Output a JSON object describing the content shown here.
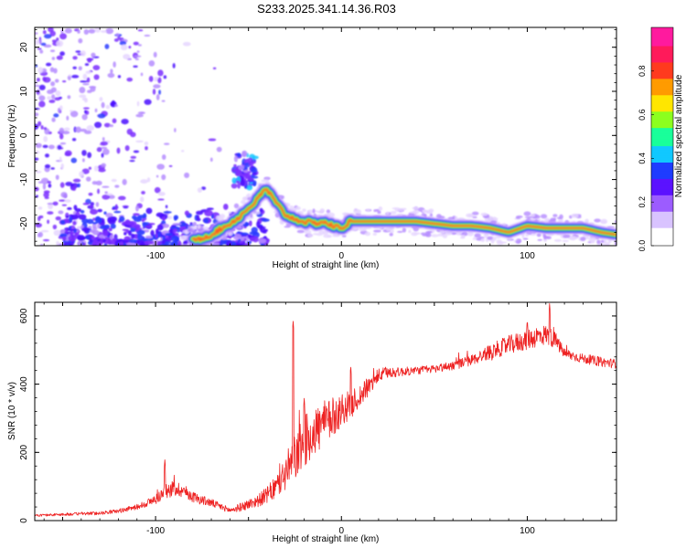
{
  "title": "S233.2025.341.14.36.R03",
  "colors": {
    "snr_line": "#ee2222",
    "axis": "#000000",
    "spectrogram_palette": [
      "#ffffff",
      "#e6d6ff",
      "#b58cff",
      "#7b2fff",
      "#4a10ff",
      "#2a3cff",
      "#19c7ff",
      "#22ff88",
      "#bfff22",
      "#ffd400",
      "#ff7a00",
      "#ff2222",
      "#ff1a8c"
    ]
  },
  "chart_data": [
    {
      "id": "spectrogram",
      "type": "heatmap",
      "xlabel": "Height of straight line (km)",
      "ylabel": "Frequency (Hz)",
      "xlim": [
        -165,
        148
      ],
      "ylim": [
        -25,
        24.5
      ],
      "xticks": [
        -100,
        0,
        100
      ],
      "yticks": [
        -20,
        -10,
        0,
        10,
        20
      ],
      "xtick_labels": [
        "-100",
        "0",
        "100"
      ],
      "ytick_labels": [
        "-20",
        "-10",
        "0",
        "10",
        "20"
      ],
      "ridge": {
        "x": [
          -80,
          -70,
          -60,
          -55,
          -50,
          -45,
          -41,
          -38,
          -35,
          -30,
          -25,
          -20,
          -15,
          -10,
          -5,
          0,
          5,
          20,
          40,
          60,
          70,
          80,
          90,
          100,
          110,
          120,
          130,
          140,
          148
        ],
        "y": [
          -24,
          -22.5,
          -20,
          -18.5,
          -16.5,
          -14.5,
          -12,
          -13.5,
          -15.5,
          -18,
          -19,
          -19.5,
          -20,
          -19.5,
          -20.5,
          -21,
          -19.5,
          -19.5,
          -19.5,
          -20.5,
          -20.5,
          -21,
          -22,
          -20.5,
          -21,
          -21,
          -21,
          -22,
          -22.5
        ]
      },
      "colorbar": {
        "label": "Normalized spectral amplitude",
        "range": [
          0,
          1
        ],
        "ticks": [
          0,
          0.2,
          0.4,
          0.6,
          0.8
        ],
        "tick_labels": [
          "0.0",
          "0.2",
          "0.4",
          "0.6",
          "0.8"
        ]
      }
    },
    {
      "id": "snr",
      "type": "line",
      "xlabel": "Height of straight line (km)",
      "ylabel": "SNR (10 * v/v)",
      "xlim": [
        -165,
        148
      ],
      "ylim": [
        0,
        640
      ],
      "xticks": [
        -100,
        0,
        100
      ],
      "yticks": [
        0,
        200,
        400,
        600
      ],
      "xtick_labels": [
        "-100",
        "0",
        "100"
      ],
      "ytick_labels": [
        "0",
        "200",
        "400",
        "600"
      ],
      "series": [
        {
          "name": "SNR",
          "envelope_x": [
            -165,
            -150,
            -130,
            -120,
            -110,
            -100,
            -95,
            -90,
            -85,
            -80,
            -75,
            -70,
            -60,
            -55,
            -50,
            -45,
            -40,
            -35,
            -30,
            -25,
            -20,
            -15,
            -10,
            -5,
            0,
            5,
            10,
            15,
            20,
            25,
            30,
            40,
            50,
            60,
            70,
            80,
            90,
            100,
            105,
            110,
            115,
            120,
            130,
            140,
            148
          ],
          "envelope_y": [
            15,
            18,
            22,
            28,
            40,
            62,
            85,
            95,
            88,
            70,
            60,
            52,
            30,
            38,
            48,
            58,
            75,
            98,
            140,
            185,
            230,
            260,
            280,
            300,
            325,
            340,
            365,
            395,
            425,
            435,
            435,
            440,
            445,
            455,
            470,
            495,
            515,
            530,
            540,
            545,
            530,
            490,
            475,
            465,
            460
          ],
          "noise_amplitude": [
            3,
            4,
            5,
            6,
            8,
            15,
            20,
            25,
            20,
            16,
            14,
            12,
            8,
            12,
            15,
            18,
            25,
            35,
            55,
            70,
            75,
            75,
            70,
            60,
            50,
            40,
            35,
            28,
            20,
            18,
            14,
            12,
            12,
            14,
            16,
            22,
            28,
            30,
            32,
            30,
            24,
            16,
            14,
            14,
            14
          ],
          "spikes": [
            {
              "x": -95,
              "y": 182
            },
            {
              "x": -26,
              "y": 588
            },
            {
              "x": -20,
              "y": 360
            },
            {
              "x": 5,
              "y": 455
            },
            {
              "x": 112,
              "y": 638
            },
            {
              "x": 100,
              "y": 590
            }
          ]
        }
      ]
    }
  ]
}
